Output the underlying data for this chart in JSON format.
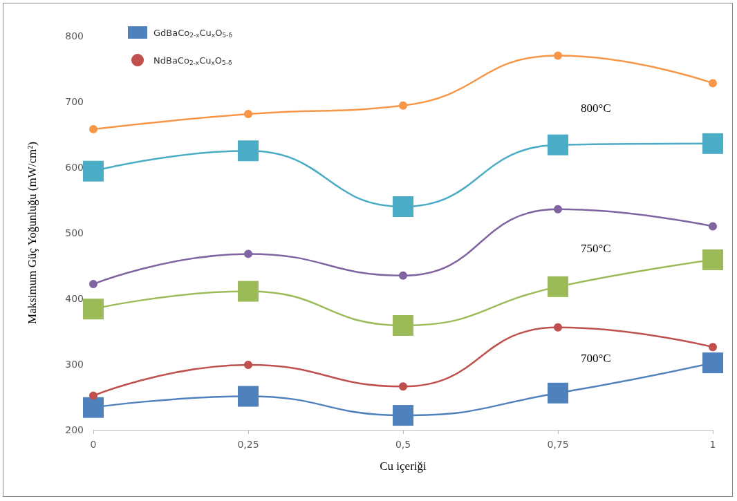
{
  "chart_data": {
    "type": "line",
    "xlabel": "Cu içeriği",
    "ylabel": "Maksimum Güç Yoğunluğu (mW/cm²)",
    "xlim": [
      0,
      1
    ],
    "xticks": [
      0,
      {
        "value": 0.25,
        "label": "0,25"
      },
      {
        "value": 0.5,
        "label": "0,5"
      },
      {
        "value": 0.75,
        "label": "0,75"
      },
      1
    ],
    "ylim": [
      200,
      800
    ],
    "yticks": [
      200,
      300,
      400,
      500,
      600,
      700,
      800
    ],
    "grid": false,
    "legend": "top left",
    "line_style": "solid",
    "x": [
      0,
      0.25,
      0.5,
      0.75,
      1
    ],
    "series": [
      {
        "name": "GdBaCo$_{2-x}$Cu$_{x}$O$_{5-δ}$",
        "color": "#4f81bd",
        "marker": "square",
        "values": [
          234,
          251,
          222,
          256,
          302
        ]
      },
      {
        "name": "NdBaCo$_{2-x}$Cu$_{x}$O$_{5-δ}$",
        "color": "#c0504d",
        "marker": "circle",
        "values": [
          252,
          299,
          266,
          356,
          326
        ]
      },
      {
        "color": "#9bbb59",
        "marker": "square",
        "values": [
          384,
          411,
          359,
          418,
          459
        ]
      },
      {
        "color": "#8064a2",
        "marker": "circle",
        "values": [
          422,
          468,
          435,
          536,
          510
        ]
      },
      {
        "color": "#4bacc6",
        "marker": "square",
        "values": [
          594,
          625,
          540,
          634,
          636
        ]
      },
      {
        "color": "#f79646",
        "marker": "circle",
        "values": [
          658,
          681,
          694,
          770,
          728
        ]
      }
    ],
    "annotations": [
      "800°C",
      "750°C",
      "700°C"
    ]
  }
}
